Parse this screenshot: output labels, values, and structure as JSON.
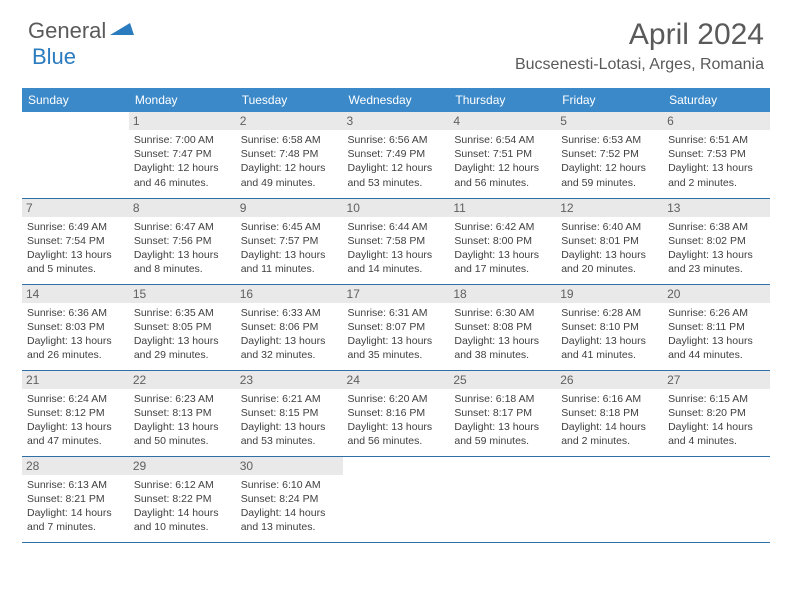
{
  "brand": {
    "name1": "General",
    "name2": "Blue"
  },
  "title": "April 2024",
  "location": "Bucsenesti-Lotasi, Arges, Romania",
  "colors": {
    "header_bg": "#3b89c9",
    "header_text": "#ffffff",
    "border": "#2f6fa8",
    "daynum_bg": "#e9e9e9",
    "text": "#404040",
    "brand_blue": "#2b7bbf"
  },
  "weekdays": [
    "Sunday",
    "Monday",
    "Tuesday",
    "Wednesday",
    "Thursday",
    "Friday",
    "Saturday"
  ],
  "weeks": [
    [
      null,
      {
        "n": "1",
        "sr": "7:00 AM",
        "ss": "7:47 PM",
        "dl": "12 hours and 46 minutes."
      },
      {
        "n": "2",
        "sr": "6:58 AM",
        "ss": "7:48 PM",
        "dl": "12 hours and 49 minutes."
      },
      {
        "n": "3",
        "sr": "6:56 AM",
        "ss": "7:49 PM",
        "dl": "12 hours and 53 minutes."
      },
      {
        "n": "4",
        "sr": "6:54 AM",
        "ss": "7:51 PM",
        "dl": "12 hours and 56 minutes."
      },
      {
        "n": "5",
        "sr": "6:53 AM",
        "ss": "7:52 PM",
        "dl": "12 hours and 59 minutes."
      },
      {
        "n": "6",
        "sr": "6:51 AM",
        "ss": "7:53 PM",
        "dl": "13 hours and 2 minutes."
      }
    ],
    [
      {
        "n": "7",
        "sr": "6:49 AM",
        "ss": "7:54 PM",
        "dl": "13 hours and 5 minutes."
      },
      {
        "n": "8",
        "sr": "6:47 AM",
        "ss": "7:56 PM",
        "dl": "13 hours and 8 minutes."
      },
      {
        "n": "9",
        "sr": "6:45 AM",
        "ss": "7:57 PM",
        "dl": "13 hours and 11 minutes."
      },
      {
        "n": "10",
        "sr": "6:44 AM",
        "ss": "7:58 PM",
        "dl": "13 hours and 14 minutes."
      },
      {
        "n": "11",
        "sr": "6:42 AM",
        "ss": "8:00 PM",
        "dl": "13 hours and 17 minutes."
      },
      {
        "n": "12",
        "sr": "6:40 AM",
        "ss": "8:01 PM",
        "dl": "13 hours and 20 minutes."
      },
      {
        "n": "13",
        "sr": "6:38 AM",
        "ss": "8:02 PM",
        "dl": "13 hours and 23 minutes."
      }
    ],
    [
      {
        "n": "14",
        "sr": "6:36 AM",
        "ss": "8:03 PM",
        "dl": "13 hours and 26 minutes."
      },
      {
        "n": "15",
        "sr": "6:35 AM",
        "ss": "8:05 PM",
        "dl": "13 hours and 29 minutes."
      },
      {
        "n": "16",
        "sr": "6:33 AM",
        "ss": "8:06 PM",
        "dl": "13 hours and 32 minutes."
      },
      {
        "n": "17",
        "sr": "6:31 AM",
        "ss": "8:07 PM",
        "dl": "13 hours and 35 minutes."
      },
      {
        "n": "18",
        "sr": "6:30 AM",
        "ss": "8:08 PM",
        "dl": "13 hours and 38 minutes."
      },
      {
        "n": "19",
        "sr": "6:28 AM",
        "ss": "8:10 PM",
        "dl": "13 hours and 41 minutes."
      },
      {
        "n": "20",
        "sr": "6:26 AM",
        "ss": "8:11 PM",
        "dl": "13 hours and 44 minutes."
      }
    ],
    [
      {
        "n": "21",
        "sr": "6:24 AM",
        "ss": "8:12 PM",
        "dl": "13 hours and 47 minutes."
      },
      {
        "n": "22",
        "sr": "6:23 AM",
        "ss": "8:13 PM",
        "dl": "13 hours and 50 minutes."
      },
      {
        "n": "23",
        "sr": "6:21 AM",
        "ss": "8:15 PM",
        "dl": "13 hours and 53 minutes."
      },
      {
        "n": "24",
        "sr": "6:20 AM",
        "ss": "8:16 PM",
        "dl": "13 hours and 56 minutes."
      },
      {
        "n": "25",
        "sr": "6:18 AM",
        "ss": "8:17 PM",
        "dl": "13 hours and 59 minutes."
      },
      {
        "n": "26",
        "sr": "6:16 AM",
        "ss": "8:18 PM",
        "dl": "14 hours and 2 minutes."
      },
      {
        "n": "27",
        "sr": "6:15 AM",
        "ss": "8:20 PM",
        "dl": "14 hours and 4 minutes."
      }
    ],
    [
      {
        "n": "28",
        "sr": "6:13 AM",
        "ss": "8:21 PM",
        "dl": "14 hours and 7 minutes."
      },
      {
        "n": "29",
        "sr": "6:12 AM",
        "ss": "8:22 PM",
        "dl": "14 hours and 10 minutes."
      },
      {
        "n": "30",
        "sr": "6:10 AM",
        "ss": "8:24 PM",
        "dl": "14 hours and 13 minutes."
      },
      null,
      null,
      null,
      null
    ]
  ],
  "labels": {
    "sunrise": "Sunrise: ",
    "sunset": "Sunset: ",
    "daylight": "Daylight: "
  }
}
